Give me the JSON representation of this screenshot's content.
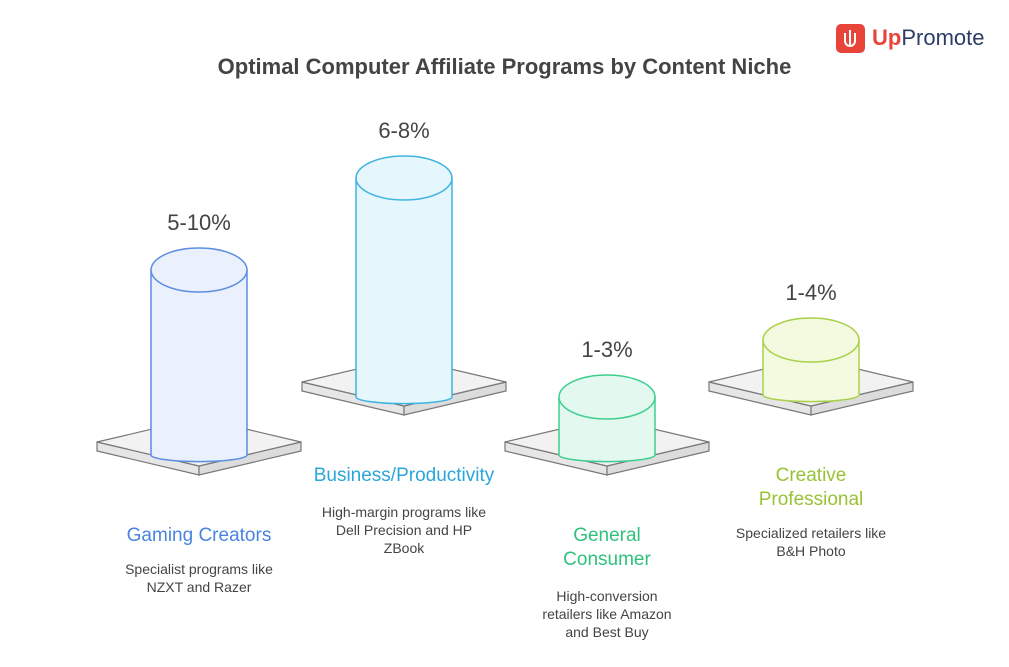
{
  "title": "Optimal Computer Affiliate Programs by Content Niche",
  "brand": {
    "accent": "Up",
    "rest": "Promote"
  },
  "items": [
    {
      "value_label": "5-10%",
      "title": "Gaming Creators",
      "description": "Specialist programs like NZXT and Razer"
    },
    {
      "value_label": "6-8%",
      "title": "Business/Productivity",
      "description": "High-margin programs like Dell Precision and HP ZBook"
    },
    {
      "value_label": "1-3%",
      "title": "General Consumer",
      "description": "High-conversion retailers like Amazon and Best Buy"
    },
    {
      "value_label": "1-4%",
      "title": "Creative Professional",
      "description": "Specialized retailers like B&H Photo"
    }
  ]
}
